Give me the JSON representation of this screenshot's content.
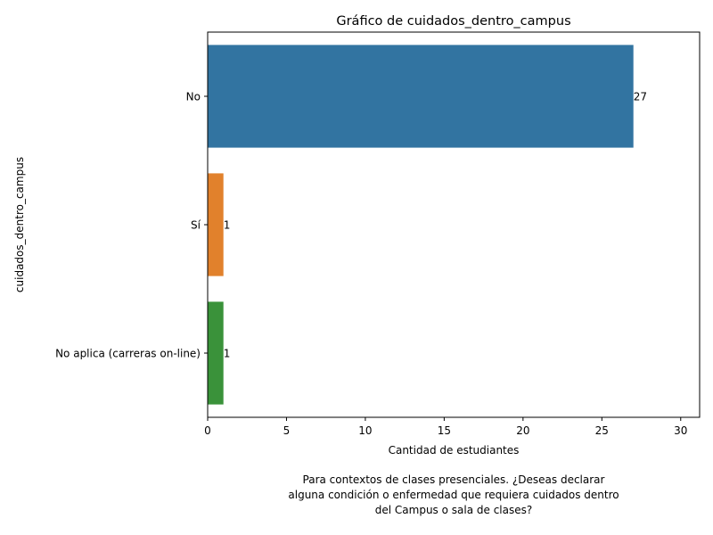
{
  "chart_data": {
    "type": "bar",
    "orientation": "horizontal",
    "title": "Gráfico de cuidados_dentro_campus",
    "xlabel": "Cantidad de estudiantes",
    "ylabel": "cuidados_dentro_campus",
    "categories": [
      "No",
      "Sí",
      "No aplica (carreras on-line)"
    ],
    "values": [
      27,
      1,
      1
    ],
    "colors": [
      "#3274a1",
      "#e1812c",
      "#3a923a"
    ],
    "data_labels": [
      "27",
      "1",
      "1"
    ],
    "xlim": [
      0,
      31.2
    ],
    "xticks": [
      0,
      5,
      10,
      15,
      20,
      25,
      30
    ],
    "xtick_labels": [
      "0",
      "5",
      "10",
      "15",
      "20",
      "25",
      "30"
    ],
    "grid": false,
    "caption": [
      "Para contextos de clases presenciales. ¿Deseas declarar",
      "alguna condición o enfermedad que requiera cuidados dentro",
      "del Campus o sala de clases?"
    ]
  }
}
